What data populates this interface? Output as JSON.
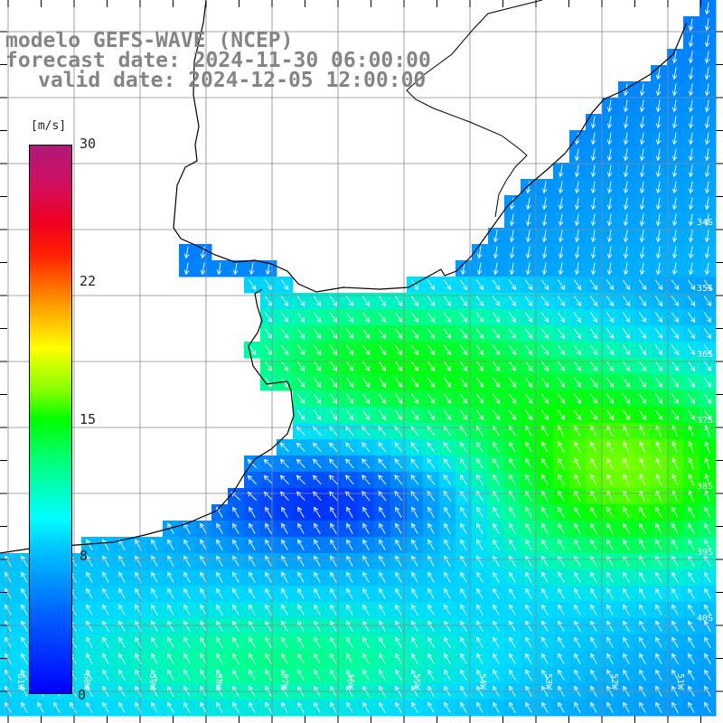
{
  "title": {
    "line1": "modelo GEFS-WAVE (NCEP)",
    "line2": "forecast date: 2024-11-30 06:00:00",
    "line3": "valid date: 2024-12-05 12:00:00"
  },
  "colorbar": {
    "unit": "[m/s]",
    "ticks": [
      "30",
      "22",
      "15",
      "8",
      "0"
    ]
  },
  "lat_labels": [
    "34S",
    "35S",
    "36S",
    "37S",
    "38S",
    "39S",
    "40S"
  ],
  "lon_labels": [
    "61W",
    "60W",
    "59W",
    "58W",
    "57W",
    "56W",
    "55W",
    "54W",
    "53W",
    "52W",
    "51W"
  ],
  "colors": {
    "land": "#ffffff",
    "grid": "#8a8a8a",
    "coast": "#000000",
    "arrow": "#ffffff",
    "title": "#858585"
  }
}
